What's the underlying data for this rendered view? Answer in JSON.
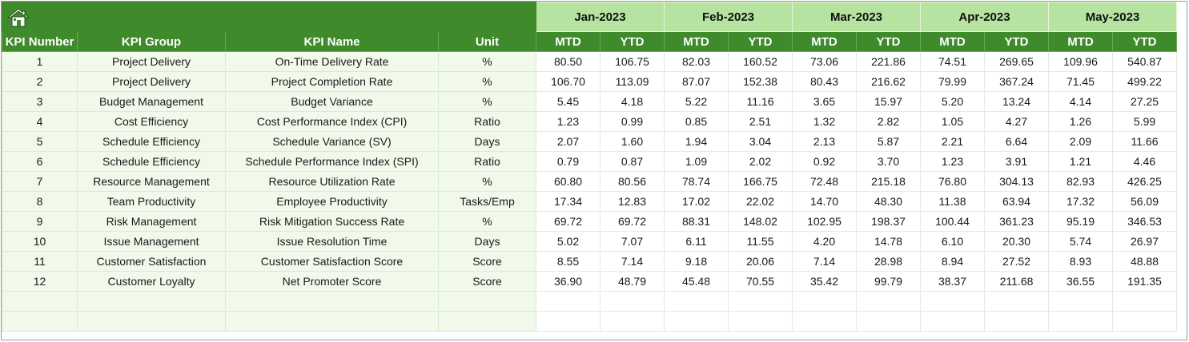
{
  "months": [
    "Jan-2023",
    "Feb-2023",
    "Mar-2023",
    "Apr-2023",
    "May-2023"
  ],
  "headers": {
    "kpi_number": "KPI Number",
    "kpi_group": "KPI Group",
    "kpi_name": "KPI Name",
    "unit": "Unit",
    "mtd": "MTD",
    "ytd": "YTD"
  },
  "icons": {
    "home": "home-icon"
  },
  "colors": {
    "header_green": "#3f8a2a",
    "month_green": "#b7e3a1",
    "left_fill": "#f0f9ea"
  },
  "rows": [
    {
      "num": "1",
      "group": "Project Delivery",
      "name": "On-Time Delivery Rate",
      "unit": "%",
      "values": [
        "80.50",
        "106.75",
        "82.03",
        "160.52",
        "73.06",
        "221.86",
        "74.51",
        "269.65",
        "109.96",
        "540.87"
      ]
    },
    {
      "num": "2",
      "group": "Project Delivery",
      "name": "Project Completion Rate",
      "unit": "%",
      "values": [
        "106.70",
        "113.09",
        "87.07",
        "152.38",
        "80.43",
        "216.62",
        "79.99",
        "367.24",
        "71.45",
        "499.22"
      ]
    },
    {
      "num": "3",
      "group": "Budget Management",
      "name": "Budget Variance",
      "unit": "%",
      "values": [
        "5.45",
        "4.18",
        "5.22",
        "11.16",
        "3.65",
        "15.97",
        "5.20",
        "13.24",
        "4.14",
        "27.25"
      ]
    },
    {
      "num": "4",
      "group": "Cost Efficiency",
      "name": "Cost Performance Index (CPI)",
      "unit": "Ratio",
      "values": [
        "1.23",
        "0.99",
        "0.85",
        "2.51",
        "1.32",
        "2.82",
        "1.05",
        "4.27",
        "1.26",
        "5.99"
      ]
    },
    {
      "num": "5",
      "group": "Schedule Efficiency",
      "name": "Schedule Variance (SV)",
      "unit": "Days",
      "values": [
        "2.07",
        "1.60",
        "1.94",
        "3.04",
        "2.13",
        "5.87",
        "2.21",
        "6.64",
        "2.09",
        "11.66"
      ]
    },
    {
      "num": "6",
      "group": "Schedule Efficiency",
      "name": "Schedule Performance Index (SPI)",
      "unit": "Ratio",
      "values": [
        "0.79",
        "0.87",
        "1.09",
        "2.02",
        "0.92",
        "3.70",
        "1.23",
        "3.91",
        "1.21",
        "4.46"
      ]
    },
    {
      "num": "7",
      "group": "Resource Management",
      "name": "Resource Utilization Rate",
      "unit": "%",
      "values": [
        "60.80",
        "80.56",
        "78.74",
        "166.75",
        "72.48",
        "215.18",
        "76.80",
        "304.13",
        "82.93",
        "426.25"
      ]
    },
    {
      "num": "8",
      "group": "Team Productivity",
      "name": "Employee Productivity",
      "unit": "Tasks/Emp",
      "values": [
        "17.34",
        "12.83",
        "17.02",
        "22.02",
        "14.70",
        "48.30",
        "11.38",
        "63.94",
        "17.32",
        "56.09"
      ]
    },
    {
      "num": "9",
      "group": "Risk Management",
      "name": "Risk Mitigation Success Rate",
      "unit": "%",
      "values": [
        "69.72",
        "69.72",
        "88.31",
        "148.02",
        "102.95",
        "198.37",
        "100.44",
        "361.23",
        "95.19",
        "346.53"
      ]
    },
    {
      "num": "10",
      "group": "Issue Management",
      "name": "Issue Resolution Time",
      "unit": "Days",
      "values": [
        "5.02",
        "7.07",
        "6.11",
        "11.55",
        "4.20",
        "14.78",
        "6.10",
        "20.30",
        "5.74",
        "26.97"
      ]
    },
    {
      "num": "11",
      "group": "Customer Satisfaction",
      "name": "Customer Satisfaction Score",
      "unit": "Score",
      "values": [
        "8.55",
        "7.14",
        "9.18",
        "20.06",
        "7.14",
        "28.98",
        "8.94",
        "27.52",
        "8.93",
        "48.88"
      ]
    },
    {
      "num": "12",
      "group": "Customer Loyalty",
      "name": "Net Promoter Score",
      "unit": "Score",
      "values": [
        "36.90",
        "48.79",
        "45.48",
        "70.55",
        "35.42",
        "99.79",
        "38.37",
        "211.68",
        "36.55",
        "191.35"
      ]
    }
  ],
  "empty_rows": 2
}
